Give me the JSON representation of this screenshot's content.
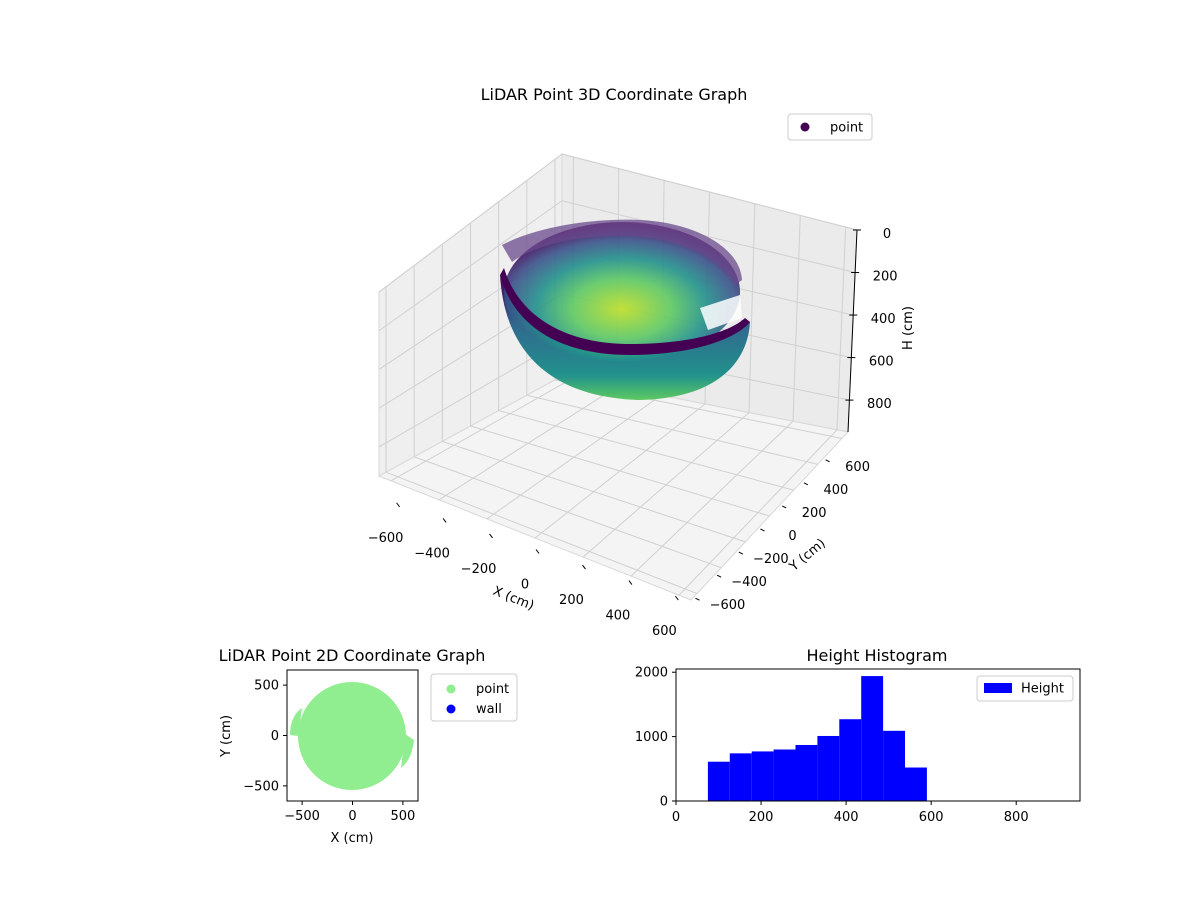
{
  "colors": {
    "bowl_dark": "#440154",
    "bowl_mid": "#21918c",
    "bowl_light": "#bddf26",
    "pane": "#f2f2f2",
    "grid": "#d4d4d4",
    "point_2d": "#90ee90",
    "wall_2d": "#0000ff",
    "histogram": "#0000ff"
  },
  "chart_data": [
    {
      "type": "scatter",
      "subtype": "3d",
      "title": "LiDAR Point 3D Coordinate Graph",
      "xlabel": "X (cm)",
      "ylabel": "Y (cm)",
      "zlabel": "H (cm)",
      "xticks": [
        -600,
        -400,
        -200,
        0,
        200,
        400,
        600
      ],
      "yticks": [
        -600,
        -400,
        -200,
        0,
        200,
        400,
        600
      ],
      "zticks": [
        0,
        200,
        400,
        600,
        800
      ],
      "xlim": [
        -650,
        650
      ],
      "ylim": [
        -650,
        650
      ],
      "zlim": [
        0,
        950
      ],
      "z_inverted": true,
      "grid": true,
      "legend": {
        "position": "top-right",
        "entries": [
          {
            "name": "point",
            "color": "#440154"
          }
        ]
      },
      "series": [
        {
          "name": "point",
          "shape": "hemispherical bowl of points with a notch (wall gap)",
          "radius": 540,
          "max_depth": 590,
          "colormap": "viridis"
        }
      ]
    },
    {
      "type": "scatter",
      "title": "LiDAR Point 2D Coordinate Graph",
      "xlabel": "X (cm)",
      "ylabel": "Y (cm)",
      "xticks": [
        -500,
        0,
        500
      ],
      "yticks": [
        -500,
        0,
        500
      ],
      "xlim": [
        -650,
        650
      ],
      "ylim": [
        -650,
        650
      ],
      "legend": {
        "position": "outside-right",
        "entries": [
          {
            "name": "point",
            "color": "#90ee90"
          },
          {
            "name": "wall",
            "color": "#0000ff"
          }
        ]
      },
      "series": [
        {
          "name": "point",
          "shape": "filled disk with notch",
          "center": [
            0,
            0
          ],
          "radius": 540
        },
        {
          "name": "wall",
          "points": []
        }
      ]
    },
    {
      "type": "bar",
      "subtype": "histogram",
      "title": "Height Histogram",
      "xlabel": "",
      "ylabel": "",
      "xticks": [
        0,
        200,
        400,
        600,
        800
      ],
      "yticks": [
        0,
        1000,
        2000
      ],
      "xlim": [
        0,
        950
      ],
      "ylim": [
        0,
        2050
      ],
      "legend": {
        "position": "top-right",
        "entries": [
          {
            "name": "Height",
            "color": "#0000ff"
          }
        ]
      },
      "bin_edges": [
        75,
        126.5,
        178,
        229.5,
        281,
        332.5,
        384,
        435.5,
        487,
        538.5,
        590
      ],
      "counts": [
        610,
        740,
        770,
        800,
        870,
        1010,
        1270,
        1940,
        1090,
        520
      ]
    }
  ]
}
